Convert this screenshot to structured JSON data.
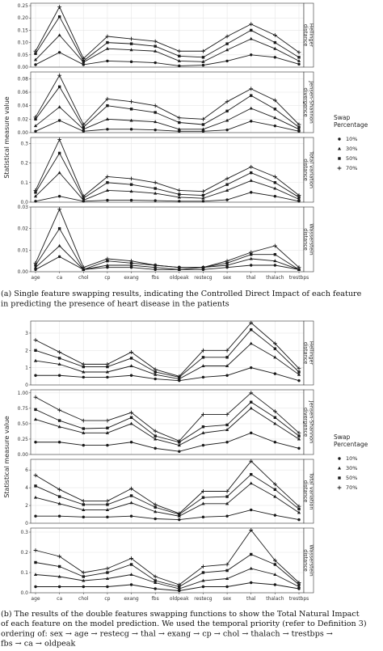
{
  "chart_data": [
    {
      "type": "line",
      "panel": "a",
      "categories": [
        "age",
        "ca",
        "chol",
        "cp",
        "exang",
        "fbs",
        "oldpeak",
        "restecg",
        "sex",
        "thal",
        "thalach",
        "trestbps"
      ],
      "ylabel": "Statistical measure value",
      "legend_title": [
        "Swap",
        "Percentage"
      ],
      "legend_placement": "right",
      "grid": true,
      "facets": [
        {
          "label": [
            "Hellinger",
            "distance"
          ],
          "ylim": [
            0,
            0.26
          ],
          "ticks": [
            "0.00",
            "0.05",
            "0.10",
            "0.15",
            "0.20",
            "0.25"
          ],
          "tick_values": [
            0,
            0.05,
            0.1,
            0.15,
            0.2,
            0.25
          ],
          "series": [
            {
              "name": "10%",
              "marker": "circle",
              "values": [
                0.01,
                0.06,
                0.01,
                0.025,
                0.022,
                0.018,
                0.005,
                0.008,
                0.025,
                0.05,
                0.04,
                0.012
              ]
            },
            {
              "name": "30%",
              "marker": "triangle",
              "values": [
                0.03,
                0.13,
                0.02,
                0.075,
                0.07,
                0.065,
                0.025,
                0.022,
                0.07,
                0.115,
                0.075,
                0.025
              ]
            },
            {
              "name": "50%",
              "marker": "square",
              "values": [
                0.055,
                0.205,
                0.025,
                0.1,
                0.095,
                0.085,
                0.045,
                0.04,
                0.095,
                0.15,
                0.1,
                0.04
              ]
            },
            {
              "name": "70%",
              "marker": "plus",
              "values": [
                0.065,
                0.245,
                0.035,
                0.125,
                0.115,
                0.105,
                0.065,
                0.065,
                0.125,
                0.175,
                0.13,
                0.06
              ]
            }
          ]
        },
        {
          "label": [
            "Jensen-Shannon",
            "divergence"
          ],
          "ylim": [
            0,
            0.09
          ],
          "ticks": [
            "0.00",
            "0.02",
            "0.04",
            "0.06",
            "0.08"
          ],
          "tick_values": [
            0,
            0.02,
            0.04,
            0.06,
            0.08
          ],
          "series": [
            {
              "name": "10%",
              "marker": "circle",
              "values": [
                0.002,
                0.018,
                0.002,
                0.005,
                0.005,
                0.004,
                0.002,
                0.002,
                0.004,
                0.017,
                0.01,
                0.002
              ]
            },
            {
              "name": "30%",
              "marker": "triangle",
              "values": [
                0.01,
                0.038,
                0.005,
                0.02,
                0.018,
                0.016,
                0.005,
                0.005,
                0.018,
                0.036,
                0.022,
                0.005
              ]
            },
            {
              "name": "50%",
              "marker": "square",
              "values": [
                0.02,
                0.068,
                0.008,
                0.04,
                0.035,
                0.03,
                0.015,
                0.012,
                0.032,
                0.055,
                0.035,
                0.008
              ]
            },
            {
              "name": "70%",
              "marker": "plus",
              "values": [
                0.023,
                0.085,
                0.012,
                0.05,
                0.046,
                0.04,
                0.022,
                0.02,
                0.046,
                0.065,
                0.048,
                0.012
              ]
            }
          ]
        },
        {
          "label": [
            "Total variation",
            "distance"
          ],
          "ylim": [
            0,
            0.33
          ],
          "ticks": [
            "0.0",
            "0.1",
            "0.2",
            "0.3"
          ],
          "tick_values": [
            0,
            0.1,
            0.2,
            0.3
          ],
          "series": [
            {
              "name": "10%",
              "marker": "circle",
              "values": [
                0.005,
                0.03,
                0.005,
                0.01,
                0.01,
                0.008,
                0.005,
                0.005,
                0.012,
                0.05,
                0.03,
                0.005
              ]
            },
            {
              "name": "30%",
              "marker": "triangle",
              "values": [
                0.03,
                0.15,
                0.01,
                0.06,
                0.055,
                0.045,
                0.025,
                0.02,
                0.06,
                0.11,
                0.07,
                0.015
              ]
            },
            {
              "name": "50%",
              "marker": "square",
              "values": [
                0.05,
                0.25,
                0.02,
                0.1,
                0.09,
                0.07,
                0.04,
                0.035,
                0.09,
                0.15,
                0.1,
                0.025
              ]
            },
            {
              "name": "70%",
              "marker": "plus",
              "values": [
                0.06,
                0.32,
                0.03,
                0.13,
                0.12,
                0.1,
                0.06,
                0.055,
                0.12,
                0.18,
                0.13,
                0.035
              ]
            }
          ]
        },
        {
          "label": [
            "Wasserstein",
            "distance"
          ],
          "ylim": [
            0,
            0.03
          ],
          "ticks": [
            "0.00",
            "0.01",
            "0.02",
            "0.03"
          ],
          "tick_values": [
            0,
            0.01,
            0.02,
            0.03
          ],
          "series": [
            {
              "name": "10%",
              "marker": "circle",
              "values": [
                0.001,
                0.007,
                0.001,
                0.002,
                0.002,
                0.001,
                0.001,
                0.001,
                0.002,
                0.003,
                0.003,
                0.001
              ]
            },
            {
              "name": "30%",
              "marker": "triangle",
              "values": [
                0.002,
                0.012,
                0.001,
                0.003,
                0.003,
                0.002,
                0.001,
                0.002,
                0.003,
                0.006,
                0.005,
                0.001
              ]
            },
            {
              "name": "50%",
              "marker": "square",
              "values": [
                0.003,
                0.02,
                0.001,
                0.005,
                0.004,
                0.003,
                0.002,
                0.002,
                0.004,
                0.008,
                0.008,
                0.001
              ]
            },
            {
              "name": "70%",
              "marker": "plus",
              "values": [
                0.004,
                0.029,
                0.002,
                0.006,
                0.005,
                0.003,
                0.002,
                0.002,
                0.005,
                0.009,
                0.012,
                0.002
              ]
            }
          ]
        }
      ]
    },
    {
      "type": "line",
      "panel": "b",
      "categories": [
        "age",
        "ca",
        "chol",
        "cp",
        "exang",
        "fbs",
        "oldpeak",
        "restecg",
        "sex",
        "thal",
        "thalach",
        "trestbps"
      ],
      "ylabel": "Statistical measure value",
      "legend_title": [
        "Swap",
        "Percentage"
      ],
      "legend_placement": "right",
      "grid": true,
      "facets": [
        {
          "label": [
            "Hellinger",
            "distance"
          ],
          "ylim": [
            0,
            3.7
          ],
          "ticks": [
            "0",
            "1",
            "2",
            "3"
          ],
          "tick_values": [
            0,
            1,
            2,
            3
          ],
          "series": [
            {
              "name": "10%",
              "marker": "circle",
              "values": [
                0.55,
                0.55,
                0.45,
                0.45,
                0.55,
                0.35,
                0.25,
                0.45,
                0.55,
                1.0,
                0.65,
                0.25
              ]
            },
            {
              "name": "30%",
              "marker": "triangle",
              "values": [
                1.4,
                1.2,
                0.75,
                0.75,
                1.1,
                0.6,
                0.35,
                1.1,
                1.1,
                2.4,
                1.6,
                0.6
              ]
            },
            {
              "name": "50%",
              "marker": "square",
              "values": [
                2.0,
                1.55,
                1.05,
                1.05,
                1.55,
                0.75,
                0.45,
                1.6,
                1.6,
                3.2,
                2.1,
                0.75
              ]
            },
            {
              "name": "70%",
              "marker": "plus",
              "values": [
                2.6,
                1.9,
                1.2,
                1.2,
                1.9,
                0.9,
                0.5,
                2.0,
                2.0,
                3.6,
                2.4,
                0.95
              ]
            }
          ]
        },
        {
          "label": [
            "Jensen-Shannon",
            "divergence"
          ],
          "ylim": [
            0,
            1.05
          ],
          "ticks": [
            "0.00",
            "0.25",
            "0.50",
            "0.75",
            "1.00"
          ],
          "tick_values": [
            0,
            0.25,
            0.5,
            0.75,
            1.0
          ],
          "series": [
            {
              "name": "10%",
              "marker": "circle",
              "values": [
                0.2,
                0.2,
                0.15,
                0.15,
                0.2,
                0.1,
                0.05,
                0.15,
                0.2,
                0.35,
                0.2,
                0.1
              ]
            },
            {
              "name": "30%",
              "marker": "triangle",
              "values": [
                0.57,
                0.45,
                0.35,
                0.35,
                0.5,
                0.25,
                0.15,
                0.35,
                0.4,
                0.75,
                0.5,
                0.25
              ]
            },
            {
              "name": "50%",
              "marker": "square",
              "values": [
                0.73,
                0.55,
                0.42,
                0.43,
                0.6,
                0.3,
                0.2,
                0.45,
                0.48,
                0.85,
                0.6,
                0.3
              ]
            },
            {
              "name": "70%",
              "marker": "plus",
              "values": [
                0.93,
                0.72,
                0.55,
                0.55,
                0.68,
                0.38,
                0.22,
                0.65,
                0.65,
                1.0,
                0.7,
                0.35
              ]
            }
          ]
        },
        {
          "label": [
            "Total variation",
            "distance"
          ],
          "ylim": [
            0,
            7.2
          ],
          "ticks": [
            "0",
            "2",
            "4",
            "6"
          ],
          "tick_values": [
            0,
            2,
            4,
            6
          ],
          "series": [
            {
              "name": "10%",
              "marker": "circle",
              "values": [
                0.8,
                0.8,
                0.7,
                0.7,
                0.8,
                0.5,
                0.4,
                0.7,
                0.8,
                1.5,
                0.9,
                0.4
              ]
            },
            {
              "name": "30%",
              "marker": "triangle",
              "values": [
                2.9,
                2.2,
                1.5,
                1.5,
                2.3,
                1.3,
                0.8,
                2.2,
                2.2,
                4.5,
                3.0,
                1.2
              ]
            },
            {
              "name": "50%",
              "marker": "square",
              "values": [
                4.2,
                3.0,
                2.1,
                2.1,
                3.1,
                1.8,
                1.0,
                2.9,
                3.0,
                5.5,
                3.8,
                1.6
              ]
            },
            {
              "name": "70%",
              "marker": "plus",
              "values": [
                5.4,
                3.8,
                2.5,
                2.5,
                3.9,
                2.1,
                1.1,
                3.6,
                3.6,
                7.0,
                4.4,
                1.9
              ]
            }
          ]
        },
        {
          "label": [
            "Wasserstein",
            "distance"
          ],
          "ylim": [
            0,
            0.32
          ],
          "ticks": [
            "0.0",
            "0.1",
            "0.2",
            "0.3"
          ],
          "tick_values": [
            0,
            0.1,
            0.2,
            0.3
          ],
          "series": [
            {
              "name": "10%",
              "marker": "circle",
              "values": [
                0.03,
                0.03,
                0.03,
                0.03,
                0.04,
                0.02,
                0.01,
                0.03,
                0.03,
                0.05,
                0.04,
                0.02
              ]
            },
            {
              "name": "30%",
              "marker": "triangle",
              "values": [
                0.09,
                0.08,
                0.06,
                0.07,
                0.09,
                0.05,
                0.02,
                0.06,
                0.07,
                0.12,
                0.09,
                0.03
              ]
            },
            {
              "name": "50%",
              "marker": "square",
              "values": [
                0.15,
                0.13,
                0.08,
                0.1,
                0.14,
                0.06,
                0.03,
                0.1,
                0.11,
                0.19,
                0.14,
                0.04
              ]
            },
            {
              "name": "70%",
              "marker": "plus",
              "values": [
                0.21,
                0.18,
                0.1,
                0.12,
                0.17,
                0.08,
                0.04,
                0.13,
                0.14,
                0.31,
                0.16,
                0.05
              ]
            }
          ]
        }
      ]
    }
  ],
  "captions": {
    "a": [
      "(a) Single feature swapping results, indicating the Controlled Direct Impact of each feature",
      "in predicting the presence of heart disease in the patients"
    ],
    "b": [
      "(b) The results of the double features swapping functions to show the Total Natural Impact",
      "of each feature on the model prediction. We used the temporal priority (refer to Definition 3)",
      "ordering of: sex → age → restecg → thal → exang → cp → chol → thalach → trestbps →",
      "fbs → ca → oldpeak"
    ]
  },
  "colors": {
    "line": "#1a1a1a",
    "grid": "#e6e6e6",
    "strip_bg": "#ffffff",
    "panel_border": "#333333"
  }
}
